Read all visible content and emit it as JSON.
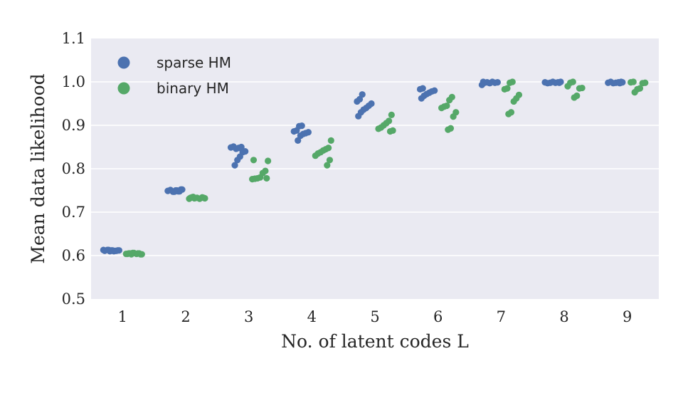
{
  "chart_data": {
    "type": "scatter",
    "title": "",
    "xlabel": "No. of latent codes L",
    "ylabel": "Mean data likelihood",
    "categories": [
      "1",
      "2",
      "3",
      "4",
      "5",
      "6",
      "7",
      "8",
      "9"
    ],
    "ylim": [
      0.5,
      1.1
    ],
    "yticks": [
      "0.5",
      "0.6",
      "0.7",
      "0.8",
      "0.9",
      "1.0",
      "1.1"
    ],
    "grid": true,
    "legend_position": "top-left",
    "series": [
      {
        "name": "sparse HM",
        "color": "#4c72b0",
        "offset": -0.18,
        "points": [
          [
            0.613,
            0.612,
            0.611,
            0.612,
            0.61,
            0.613,
            0.611,
            0.612,
            0.611,
            0.61,
            0.612,
            0.613
          ],
          [
            0.752,
            0.748,
            0.75,
            0.747,
            0.751,
            0.749,
            0.752,
            0.748,
            0.75,
            0.747
          ],
          [
            0.85,
            0.848,
            0.846,
            0.851,
            0.849,
            0.84,
            0.838,
            0.828,
            0.82,
            0.808
          ],
          [
            0.899,
            0.898,
            0.888,
            0.886,
            0.884,
            0.882,
            0.88,
            0.876,
            0.865
          ],
          [
            0.971,
            0.96,
            0.955,
            0.95,
            0.945,
            0.94,
            0.936,
            0.93,
            0.921
          ],
          [
            0.985,
            0.983,
            0.98,
            0.978,
            0.975,
            0.972,
            0.968,
            0.962
          ],
          [
            1.0,
            0.999,
            0.998,
            1.0,
            0.997,
            0.999,
            0.998,
            0.993
          ],
          [
            1.0,
            0.999,
            0.998,
            1.0,
            0.998,
            0.997,
            0.999,
            0.998
          ],
          [
            1.0,
            0.999,
            0.998,
            0.997,
            1.0,
            0.998,
            0.999,
            0.997
          ]
        ]
      },
      {
        "name": "binary HM",
        "color": "#55a868",
        "offset": 0.18,
        "points": [
          [
            0.606,
            0.605,
            0.604,
            0.603,
            0.605,
            0.604,
            0.606,
            0.603,
            0.605,
            0.604,
            0.603,
            0.605
          ],
          [
            0.735,
            0.733,
            0.732,
            0.734,
            0.731,
            0.733,
            0.732,
            0.734,
            0.731,
            0.733
          ],
          [
            0.82,
            0.818,
            0.795,
            0.79,
            0.78,
            0.778,
            0.777,
            0.776,
            0.778
          ],
          [
            0.865,
            0.848,
            0.845,
            0.842,
            0.838,
            0.835,
            0.83,
            0.82,
            0.808
          ],
          [
            0.924,
            0.91,
            0.905,
            0.9,
            0.895,
            0.892,
            0.888,
            0.886
          ],
          [
            0.965,
            0.958,
            0.945,
            0.943,
            0.94,
            0.93,
            0.92,
            0.893,
            0.89
          ],
          [
            1.0,
            0.998,
            0.985,
            0.983,
            0.97,
            0.962,
            0.955,
            0.93,
            0.926
          ],
          [
            1.0,
            0.998,
            0.99,
            0.986,
            0.985,
            0.968,
            0.964
          ],
          [
            1.0,
            0.999,
            0.998,
            0.997,
            0.985,
            0.983,
            0.976
          ]
        ]
      }
    ]
  }
}
